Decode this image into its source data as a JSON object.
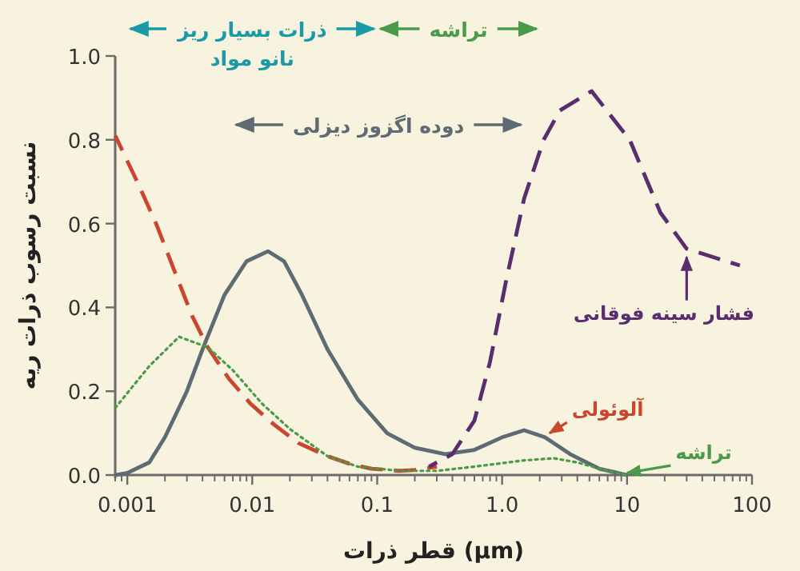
{
  "chart_data": {
    "type": "line",
    "xlabel": "قطر ذرات (μm)",
    "ylabel": "نسبت رسوب ذرات ریه",
    "log": "x",
    "xlim": [
      0.0008,
      100
    ],
    "xticks": [
      0.001,
      0.01,
      0.1,
      {
        "value": 1,
        "label": "1.0"
      },
      10,
      100
    ],
    "ylim": [
      0,
      1
    ],
    "yticks": [
      {
        "value": 0,
        "label": "0.0"
      },
      0.2,
      0.4,
      0.6,
      0.8,
      {
        "value": 1,
        "label": "1.0"
      }
    ],
    "grid": false,
    "series": [
      {
        "color": "#5f6b73",
        "line_style": "solid",
        "x": [
          0.0008,
          0.001,
          0.0015,
          0.002,
          0.003,
          0.004,
          0.006,
          0.009,
          0.0134,
          0.018,
          0.025,
          0.04,
          0.07,
          0.12,
          0.2,
          0.35,
          0.6,
          1.0,
          1.5,
          2.2,
          3.5,
          6,
          10
        ],
        "values": [
          0,
          0.005,
          0.03,
          0.09,
          0.2,
          0.3,
          0.43,
          0.51,
          0.534,
          0.51,
          0.43,
          0.3,
          0.18,
          0.1,
          0.065,
          0.05,
          0.06,
          0.09,
          0.107,
          0.09,
          0.05,
          0.015,
          0
        ]
      },
      {
        "name": "آلوئولی",
        "color": "#c8472e",
        "line_style": "dashed",
        "x": [
          0.0008,
          0.0012,
          0.0017,
          0.0024,
          0.0033,
          0.0044,
          0.0065,
          0.0097,
          0.015,
          0.0235,
          0.04,
          0.06,
          0.09,
          0.15,
          0.2,
          0.3
        ],
        "values": [
          0.81,
          0.7,
          0.6,
          0.485,
          0.38,
          0.305,
          0.23,
          0.17,
          0.12,
          0.076,
          0.045,
          0.027,
          0.015,
          0.01,
          0.012,
          0.02
        ]
      },
      {
        "name": "تراشه",
        "color": "#4a9a4a",
        "line_style": "dotted",
        "x": [
          0.0008,
          0.0015,
          0.0026,
          0.0044,
          0.007,
          0.012,
          0.02,
          0.04,
          0.07,
          0.15,
          0.3,
          0.6,
          1.5,
          2.6,
          4,
          7,
          10
        ],
        "values": [
          0.16,
          0.26,
          0.33,
          0.305,
          0.25,
          0.17,
          0.11,
          0.045,
          0.02,
          0.01,
          0.01,
          0.02,
          0.035,
          0.04,
          0.03,
          0.01,
          0
        ]
      },
      {
        "name": "فشار سینه فوقانی",
        "color": "#5a2d6e",
        "line_style": "dashed",
        "x": [
          0.26,
          0.4,
          0.6,
          0.8,
          1.07,
          1.5,
          2.15,
          2.9,
          5.2,
          10.5,
          18.5,
          30,
          80
        ],
        "values": [
          0.02,
          0.05,
          0.13,
          0.27,
          0.46,
          0.66,
          0.8,
          0.87,
          0.916,
          0.8,
          0.626,
          0.54,
          0.5
        ]
      }
    ],
    "annotations": [
      "ذرات بسیار ریز\nنانو مواد",
      "تراشه",
      "دوده اگزوز دیزلی"
    ]
  }
}
